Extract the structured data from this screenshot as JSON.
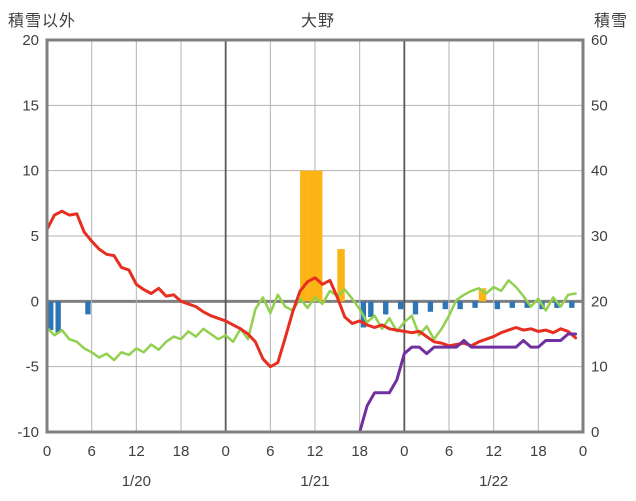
{
  "header": {
    "left_axis_title": "積雪以外",
    "station_title": "大野",
    "right_axis_title": "積雪"
  },
  "chart_data": {
    "type": "line",
    "title": "大野",
    "left_axis": {
      "title": "積雪以外",
      "min": -10,
      "max": 20,
      "ticks": [
        20,
        15,
        10,
        5,
        0,
        -5,
        -10
      ]
    },
    "right_axis": {
      "title": "積雪",
      "min": 0,
      "max": 60,
      "ticks": [
        60,
        50,
        40,
        30,
        20,
        10,
        0
      ]
    },
    "x_axis": {
      "total_hours": 72,
      "tick_hours": [
        0,
        6,
        12,
        18,
        24,
        30,
        36,
        42,
        48,
        54,
        60,
        66,
        72
      ],
      "tick_labels": [
        "0",
        "6",
        "12",
        "18",
        "0",
        "6",
        "12",
        "18",
        "0",
        "6",
        "12",
        "18",
        "0"
      ],
      "day_labels": [
        {
          "label": "1/20",
          "hour": 12
        },
        {
          "label": "1/21",
          "hour": 36
        },
        {
          "label": "1/22",
          "hour": 60
        }
      ],
      "day_boundaries": [
        24,
        48
      ]
    },
    "colors": {
      "background": "#ffffff",
      "grid": "#b3b3b3",
      "frame": "#7f7f7f",
      "day_line": "#595959",
      "zero_line": "#808080",
      "text": "#3f3f3f"
    },
    "series": [
      {
        "name": "orange-bar-series",
        "type": "bar",
        "axis": "left",
        "color": "#fcb415",
        "points": [
          {
            "hour": 34,
            "value": 10
          },
          {
            "hour": 35,
            "value": 10
          },
          {
            "hour": 36,
            "value": 10
          },
          {
            "hour": 39,
            "value": 4
          },
          {
            "hour": 58,
            "value": 1
          }
        ]
      },
      {
        "name": "blue-bar-series",
        "type": "bar",
        "axis": "left",
        "color": "#2e75b6",
        "points": [
          {
            "hour": 0,
            "value": -2.2
          },
          {
            "hour": 1,
            "value": -2.4
          },
          {
            "hour": 5,
            "value": -1.0
          },
          {
            "hour": 42,
            "value": -2.0
          },
          {
            "hour": 43,
            "value": -1.2
          },
          {
            "hour": 45,
            "value": -1.0
          },
          {
            "hour": 47,
            "value": -0.6
          },
          {
            "hour": 49,
            "value": -1.0
          },
          {
            "hour": 51,
            "value": -0.8
          },
          {
            "hour": 53,
            "value": -0.6
          },
          {
            "hour": 55,
            "value": -0.6
          },
          {
            "hour": 57,
            "value": -0.5
          },
          {
            "hour": 60,
            "value": -0.6
          },
          {
            "hour": 62,
            "value": -0.5
          },
          {
            "hour": 64,
            "value": -0.5
          },
          {
            "hour": 66,
            "value": -0.6
          },
          {
            "hour": 68,
            "value": -0.5
          },
          {
            "hour": 70,
            "value": -0.5
          }
        ]
      },
      {
        "name": "green-line-series",
        "type": "line",
        "axis": "left",
        "color": "#92d050",
        "width": 2.5,
        "values": [
          -2.0,
          -2.6,
          -2.2,
          -2.9,
          -3.1,
          -3.6,
          -3.9,
          -4.3,
          -4.0,
          -4.5,
          -3.9,
          -4.1,
          -3.6,
          -3.9,
          -3.3,
          -3.7,
          -3.1,
          -2.7,
          -2.9,
          -2.3,
          -2.7,
          -2.1,
          -2.5,
          -2.9,
          -2.6,
          -3.1,
          -2.1,
          -2.9,
          -0.6,
          0.3,
          -0.9,
          0.5,
          -0.4,
          -0.7,
          0.2,
          -0.5,
          0.3,
          -0.2,
          0.8,
          0.4,
          0.9,
          0.2,
          -0.6,
          -1.6,
          -1.1,
          -2.1,
          -1.3,
          -2.3,
          -1.6,
          -1.1,
          -2.6,
          -1.9,
          -2.9,
          -2.1,
          -1.1,
          0.1,
          0.5,
          0.8,
          1.0,
          0.6,
          1.1,
          0.8,
          1.6,
          1.1,
          0.4,
          -0.4,
          0.2,
          -0.7,
          0.3,
          -0.4,
          0.5,
          0.6
        ]
      },
      {
        "name": "red-line-series",
        "type": "line",
        "axis": "left",
        "color": "#e62e21",
        "width": 3,
        "values": [
          5.5,
          6.6,
          6.9,
          6.6,
          6.7,
          5.3,
          4.6,
          4.0,
          3.6,
          3.5,
          2.6,
          2.4,
          1.3,
          0.9,
          0.6,
          1.0,
          0.4,
          0.5,
          0.0,
          -0.2,
          -0.4,
          -0.8,
          -1.1,
          -1.3,
          -1.5,
          -1.8,
          -2.1,
          -2.5,
          -3.1,
          -4.4,
          -5.0,
          -4.7,
          -2.8,
          -0.8,
          0.8,
          1.5,
          1.8,
          1.3,
          1.6,
          0.3,
          -1.2,
          -1.7,
          -1.5,
          -1.8,
          -2.0,
          -1.8,
          -2.1,
          -2.2,
          -2.3,
          -2.4,
          -2.3,
          -2.7,
          -3.1,
          -3.2,
          -3.4,
          -3.3,
          -3.2,
          -3.4,
          -3.1,
          -2.9,
          -2.7,
          -2.4,
          -2.2,
          -2.0,
          -2.2,
          -2.1,
          -2.3,
          -2.2,
          -2.4,
          -2.1,
          -2.3,
          -2.8
        ]
      },
      {
        "name": "purple-line-series",
        "type": "line",
        "axis": "right",
        "color": "#7030a0",
        "width": 3,
        "values": [
          0,
          0,
          0,
          0,
          0,
          0,
          0,
          0,
          0,
          0,
          0,
          0,
          0,
          0,
          0,
          0,
          0,
          0,
          0,
          0,
          0,
          0,
          0,
          0,
          0,
          0,
          0,
          0,
          0,
          0,
          0,
          0,
          0,
          0,
          0,
          0,
          0,
          0,
          0,
          0,
          0,
          0,
          0,
          4,
          6,
          6,
          6,
          8,
          12,
          13,
          13,
          12,
          13,
          13,
          13,
          13,
          14,
          13,
          13,
          13,
          13,
          13,
          13,
          13,
          14,
          13,
          13,
          14,
          14,
          14,
          15,
          15
        ]
      }
    ]
  }
}
